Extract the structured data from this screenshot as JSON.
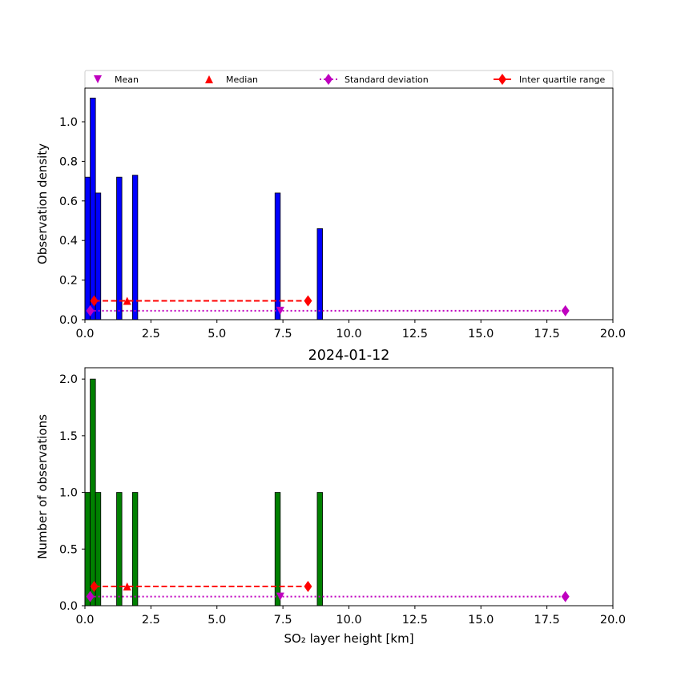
{
  "figure_title": "2024-01-12",
  "colors": {
    "density_bars": "#0000ff",
    "count_bars": "#008000",
    "mean": "#bf00bf",
    "median": "#ff0000",
    "std": "#bf00bf",
    "iqr": "#ff0000"
  },
  "legend": {
    "mean": "Mean",
    "median": "Median",
    "std": "Standard deviation",
    "iqr": "Inter quartile range"
  },
  "chart_data": [
    {
      "type": "bar",
      "ylabel": "Observation density",
      "xlim": [
        0,
        20
      ],
      "ylim": [
        0,
        1.17
      ],
      "xticks": [
        "0.0",
        "2.5",
        "5.0",
        "7.5",
        "10.0",
        "12.5",
        "15.0",
        "17.5",
        "20.0"
      ],
      "yticks": [
        "0.0",
        "0.2",
        "0.4",
        "0.6",
        "0.8",
        "1.0"
      ],
      "bin_width": 0.2,
      "bars": [
        {
          "x": 0.0,
          "value": 0.72
        },
        {
          "x": 0.2,
          "value": 1.12
        },
        {
          "x": 0.4,
          "value": 0.64
        },
        {
          "x": 1.2,
          "value": 0.72
        },
        {
          "x": 1.8,
          "value": 0.73
        },
        {
          "x": 7.2,
          "value": 0.64
        },
        {
          "x": 8.8,
          "value": 0.46
        }
      ],
      "stats": {
        "mean": {
          "x": 7.4,
          "y": 0.045
        },
        "median": {
          "x": 1.6,
          "y": 0.095
        },
        "std": {
          "x": [
            0.2,
            18.2
          ],
          "y": 0.045
        },
        "iqr": {
          "x": [
            0.35,
            8.45
          ],
          "y": 0.095
        }
      }
    },
    {
      "type": "bar",
      "title": "2024-01-12",
      "xlabel": "SO₂ layer height [km]",
      "ylabel": "Number of observations",
      "xlim": [
        0,
        20
      ],
      "ylim": [
        0,
        2.1
      ],
      "xticks": [
        "0.0",
        "2.5",
        "5.0",
        "7.5",
        "10.0",
        "12.5",
        "15.0",
        "17.5",
        "20.0"
      ],
      "yticks": [
        "0.0",
        "0.5",
        "1.0",
        "1.5",
        "2.0"
      ],
      "bin_width": 0.2,
      "bars": [
        {
          "x": 0.0,
          "value": 1
        },
        {
          "x": 0.2,
          "value": 2
        },
        {
          "x": 0.4,
          "value": 1
        },
        {
          "x": 1.2,
          "value": 1
        },
        {
          "x": 1.8,
          "value": 1
        },
        {
          "x": 7.2,
          "value": 1
        },
        {
          "x": 8.8,
          "value": 1
        }
      ],
      "stats": {
        "mean": {
          "x": 7.4,
          "y": 0.08
        },
        "median": {
          "x": 1.6,
          "y": 0.17
        },
        "std": {
          "x": [
            0.2,
            18.2
          ],
          "y": 0.08
        },
        "iqr": {
          "x": [
            0.35,
            8.45
          ],
          "y": 0.17
        }
      }
    }
  ]
}
